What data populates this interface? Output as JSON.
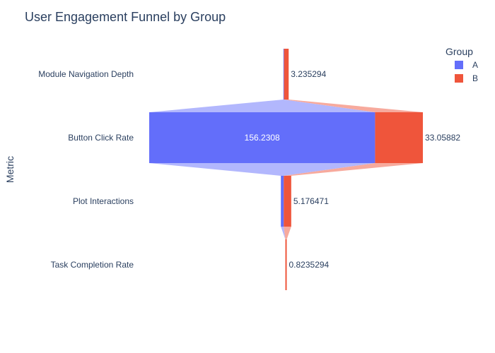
{
  "chart_data": {
    "type": "funnel",
    "title": "User Engagement Funnel by Group",
    "ylabel": "Metric",
    "categories": [
      "Module Navigation Depth",
      "Button Click Rate",
      "Plot Interactions",
      "Task Completion Rate"
    ],
    "series": [
      {
        "name": "A",
        "color": "#636efa",
        "connector_color": "#b2b7fd",
        "values": [
          0.4117647,
          156.2308,
          2.0,
          0.0
        ]
      },
      {
        "name": "B",
        "color": "#ef553b",
        "connector_color": "#f7aa9d",
        "values": [
          3.235294,
          33.05882,
          5.176471,
          0.8235294
        ]
      }
    ],
    "value_labels": {
      "A": [
        "",
        "156.2308",
        "",
        ""
      ],
      "B": [
        "3.235294",
        "33.05882",
        "5.176471",
        "0.8235294"
      ]
    },
    "legend": {
      "title": "Group",
      "position": "top-right"
    }
  }
}
